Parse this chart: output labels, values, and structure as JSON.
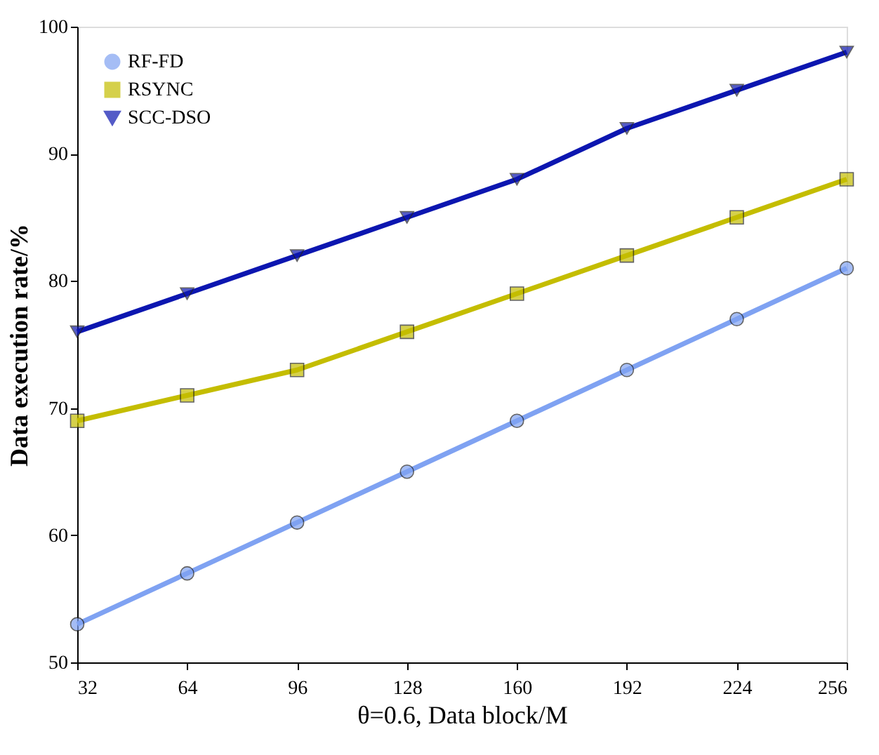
{
  "chart_data": {
    "type": "line",
    "xlabel": "θ=0.6, Data block/M",
    "ylabel": "Data execution rate/%",
    "x": [
      32,
      64,
      96,
      128,
      160,
      192,
      224,
      256
    ],
    "series": [
      {
        "name": "RF-FD",
        "color": "#7fa2f2",
        "marker": "circle",
        "values": [
          53,
          57,
          61,
          65,
          69,
          73,
          77,
          81
        ]
      },
      {
        "name": "RSYNC",
        "color": "#c4bd00",
        "marker": "square",
        "values": [
          69,
          71,
          73,
          76,
          79,
          82,
          85,
          88
        ]
      },
      {
        "name": "SCC-DSO",
        "color": "#0c16b0",
        "marker": "triangle",
        "values": [
          76,
          79,
          82,
          85,
          88,
          92,
          95,
          98
        ]
      }
    ],
    "xlim": [
      32,
      256
    ],
    "xticks": [
      32,
      64,
      96,
      128,
      160,
      192,
      224,
      256
    ],
    "ylim": [
      50,
      100
    ],
    "yticks": [
      50,
      60,
      70,
      80,
      90,
      100
    ],
    "grid": false,
    "legend": "top left",
    "line_style": "solid"
  }
}
